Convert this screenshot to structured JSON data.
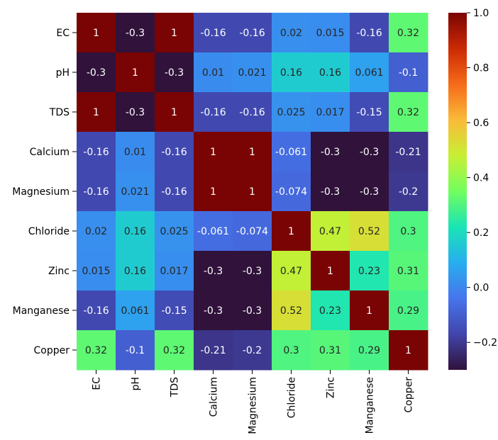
{
  "chart_data": {
    "type": "heatmap",
    "title": "",
    "xlabel": "",
    "ylabel": "",
    "x_categories": [
      "EC",
      "pH",
      "TDS",
      "Calcium",
      "Magnesium",
      "Chloride",
      "Zinc",
      "Manganese",
      "Copper"
    ],
    "y_categories": [
      "EC",
      "pH",
      "TDS",
      "Calcium",
      "Magnesium",
      "Chloride",
      "Zinc",
      "Manganese",
      "Copper"
    ],
    "values": [
      [
        1,
        -0.3,
        1,
        -0.16,
        -0.16,
        0.02,
        0.015,
        -0.16,
        0.32
      ],
      [
        -0.3,
        1,
        -0.3,
        0.01,
        0.021,
        0.16,
        0.16,
        0.061,
        -0.1
      ],
      [
        1,
        -0.3,
        1,
        -0.16,
        -0.16,
        0.025,
        0.017,
        -0.15,
        0.32
      ],
      [
        -0.16,
        0.01,
        -0.16,
        1,
        1,
        -0.061,
        -0.3,
        -0.3,
        -0.21
      ],
      [
        -0.16,
        0.021,
        -0.16,
        1,
        1,
        -0.074,
        -0.3,
        -0.3,
        -0.2
      ],
      [
        0.02,
        0.16,
        0.025,
        -0.061,
        -0.074,
        1,
        0.47,
        0.52,
        0.3
      ],
      [
        0.015,
        0.16,
        0.017,
        -0.3,
        -0.3,
        0.47,
        1,
        0.23,
        0.31
      ],
      [
        -0.16,
        0.061,
        -0.15,
        -0.3,
        -0.3,
        0.52,
        0.23,
        1,
        0.29
      ],
      [
        0.32,
        -0.1,
        0.32,
        -0.21,
        -0.2,
        0.3,
        0.31,
        0.29,
        1
      ]
    ],
    "labels": [
      [
        "1",
        "-0.3",
        "1",
        "-0.16",
        "-0.16",
        "0.02",
        "0.015",
        "-0.16",
        "0.32"
      ],
      [
        "-0.3",
        "1",
        "-0.3",
        "0.01",
        "0.021",
        "0.16",
        "0.16",
        "0.061",
        "-0.1"
      ],
      [
        "1",
        "-0.3",
        "1",
        "-0.16",
        "-0.16",
        "0.025",
        "0.017",
        "-0.15",
        "0.32"
      ],
      [
        "-0.16",
        "0.01",
        "-0.16",
        "1",
        "1",
        "-0.061",
        "-0.3",
        "-0.3",
        "-0.21"
      ],
      [
        "-0.16",
        "0.021",
        "-0.16",
        "1",
        "1",
        "-0.074",
        "-0.3",
        "-0.3",
        "-0.2"
      ],
      [
        "0.02",
        "0.16",
        "0.025",
        "-0.061",
        "-0.074",
        "1",
        "0.47",
        "0.52",
        "0.3"
      ],
      [
        "0.015",
        "0.16",
        "0.017",
        "-0.3",
        "-0.3",
        "0.47",
        "1",
        "0.23",
        "0.31"
      ],
      [
        "-0.16",
        "0.061",
        "-0.15",
        "-0.3",
        "-0.3",
        "0.52",
        "0.23",
        "1",
        "0.29"
      ],
      [
        "0.32",
        "-0.1",
        "0.32",
        "-0.21",
        "-0.2",
        "0.3",
        "0.31",
        "0.29",
        "1"
      ]
    ],
    "colorbar": {
      "vmin": -0.3,
      "vmax": 1.0,
      "ticks": [
        -0.2,
        0.0,
        0.2,
        0.4,
        0.6,
        0.8,
        1.0
      ],
      "tick_labels": [
        "−0.2",
        "0.0",
        "0.2",
        "0.4",
        "0.6",
        "0.8",
        "1.0"
      ],
      "colormap": "turbo",
      "colormap_stops": [
        [
          0.0,
          "#30123b"
        ],
        [
          0.1,
          "#4145ab"
        ],
        [
          0.2,
          "#4675ed"
        ],
        [
          0.3,
          "#27aeef"
        ],
        [
          0.4,
          "#1ae4b6"
        ],
        [
          0.5,
          "#72fe5e"
        ],
        [
          0.6,
          "#c8ef34"
        ],
        [
          0.7,
          "#faba39"
        ],
        [
          0.8,
          "#f66b19"
        ],
        [
          0.9,
          "#cb2a04"
        ],
        [
          1.0,
          "#7a0403"
        ]
      ]
    },
    "grid": false,
    "legend": "colorbar-right"
  }
}
